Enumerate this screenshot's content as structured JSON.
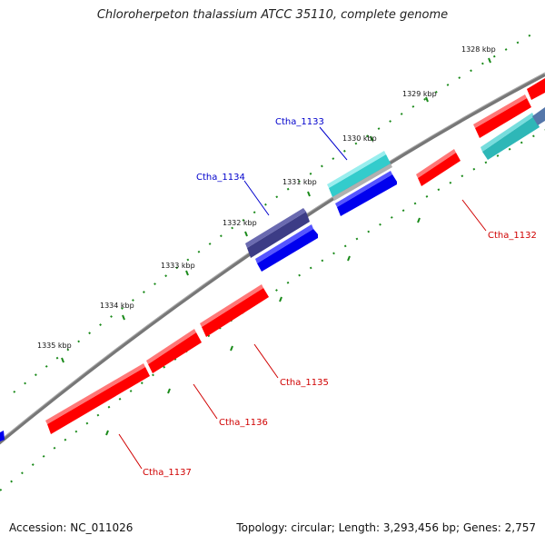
{
  "title": "Chloroherpeton thalassium ATCC 35110, complete genome",
  "footer": {
    "accession": "Accession: NC_011026",
    "summary": "Topology: circular; Length: 3,293,456 bp; Genes: 2,757"
  },
  "colors": {
    "backbone": "#777777",
    "tick": "#1a8a1a",
    "red_gene": "#ff0000",
    "blue_gene": "#0000ee",
    "navy_gene": "#3c3c86",
    "cyan_gene": "#33cccc",
    "teal_gene": "#2eb7b7",
    "slate_gene": "#5577aa",
    "red_label": "#d00000",
    "blue_label": "#0000cc"
  },
  "scale_ticks": [
    {
      "label": "1328 kbp"
    },
    {
      "label": "1329 kbp"
    },
    {
      "label": "1330 kbp"
    },
    {
      "label": "1331 kbp"
    },
    {
      "label": "1332 kbp"
    },
    {
      "label": "1333 kbp"
    },
    {
      "label": "1334 kbp"
    },
    {
      "label": "1335 kbp"
    }
  ],
  "genes": [
    {
      "label": "Ctha_1132",
      "strand": "minus",
      "color": "red"
    },
    {
      "label": "Ctha_1133",
      "strand": "plus",
      "color": "blue"
    },
    {
      "label": "Ctha_1134",
      "strand": "plus",
      "color": "blue"
    },
    {
      "label": "Ctha_1135",
      "strand": "minus",
      "color": "red"
    },
    {
      "label": "Ctha_1136",
      "strand": "minus",
      "color": "red"
    },
    {
      "label": "Ctha_1137",
      "strand": "minus",
      "color": "red"
    }
  ]
}
